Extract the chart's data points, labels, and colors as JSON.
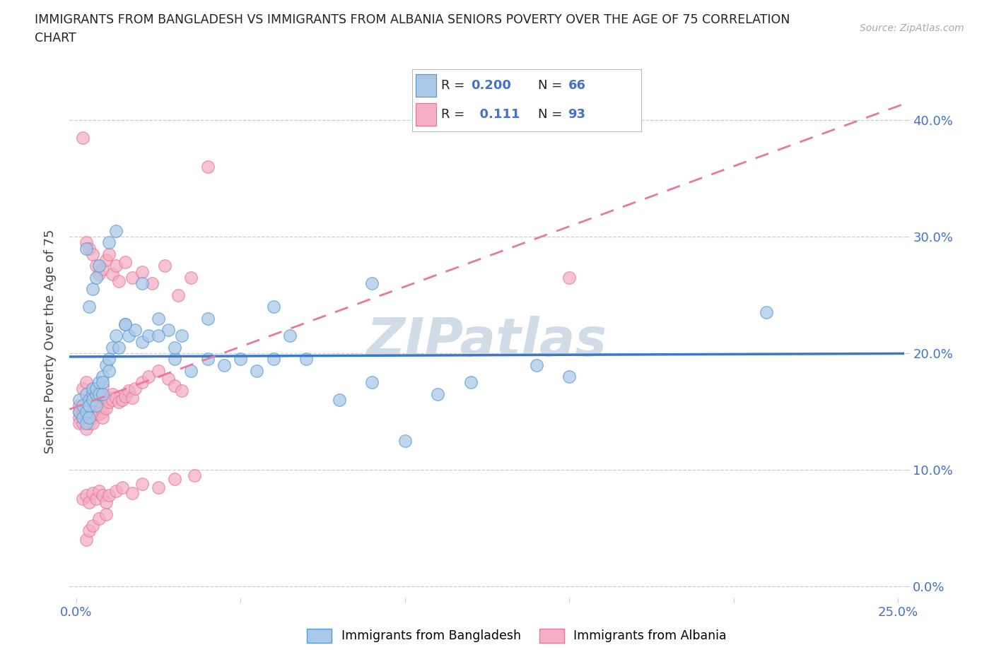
{
  "title_line1": "IMMIGRANTS FROM BANGLADESH VS IMMIGRANTS FROM ALBANIA SENIORS POVERTY OVER THE AGE OF 75 CORRELATION",
  "title_line2": "CHART",
  "source": "Source: ZipAtlas.com",
  "ylabel": "Seniors Poverty Over the Age of 75",
  "xlim": [
    -0.002,
    0.252
  ],
  "ylim": [
    -0.01,
    0.43
  ],
  "ytick_positions": [
    0.0,
    0.1,
    0.2,
    0.3,
    0.4
  ],
  "ytick_labels": [
    "0.0%",
    "10.0%",
    "20.0%",
    "30.0%",
    "40.0%"
  ],
  "xtick_positions": [
    0.0,
    0.05,
    0.1,
    0.15,
    0.2,
    0.25
  ],
  "xtick_labels": [
    "0.0%",
    "",
    "",
    "",
    "",
    "25.0%"
  ],
  "legend_label_bangladesh": "Immigrants from Bangladesh",
  "legend_label_albania": "Immigrants from Albania",
  "R_bangladesh": "0.200",
  "N_bangladesh": "66",
  "R_albania": "0.111",
  "N_albania": "93",
  "color_bangladesh_face": "#aac9e8",
  "color_albania_face": "#f4afc5",
  "color_bangladesh_edge": "#5b9bd5",
  "color_albania_edge": "#e8799a",
  "line_color_bangladesh": "#3a78c9",
  "line_color_albania": "#e8799a",
  "r_n_color": "#4472c4",
  "tick_color": "#4472c4",
  "watermark_text": "ZIPatlas",
  "watermark_color": "#d0dce8",
  "grid_color": "#cccccc",
  "title_color": "#222222",
  "source_color": "#aaaaaa",
  "bd_x": [
    0.001,
    0.001,
    0.002,
    0.002,
    0.003,
    0.003,
    0.003,
    0.004,
    0.004,
    0.004,
    0.005,
    0.005,
    0.005,
    0.006,
    0.006,
    0.006,
    0.007,
    0.007,
    0.008,
    0.008,
    0.008,
    0.009,
    0.01,
    0.01,
    0.011,
    0.012,
    0.013,
    0.015,
    0.016,
    0.018,
    0.02,
    0.022,
    0.025,
    0.028,
    0.03,
    0.032,
    0.035,
    0.04,
    0.045,
    0.05,
    0.055,
    0.06,
    0.065,
    0.07,
    0.08,
    0.09,
    0.1,
    0.11,
    0.12,
    0.14,
    0.003,
    0.004,
    0.005,
    0.006,
    0.007,
    0.01,
    0.012,
    0.015,
    0.02,
    0.025,
    0.03,
    0.04,
    0.06,
    0.09,
    0.15,
    0.21
  ],
  "bd_y": [
    0.16,
    0.15,
    0.155,
    0.145,
    0.165,
    0.15,
    0.14,
    0.16,
    0.155,
    0.145,
    0.165,
    0.17,
    0.16,
    0.165,
    0.155,
    0.17,
    0.175,
    0.165,
    0.18,
    0.165,
    0.175,
    0.19,
    0.195,
    0.185,
    0.205,
    0.215,
    0.205,
    0.225,
    0.215,
    0.22,
    0.21,
    0.215,
    0.23,
    0.22,
    0.195,
    0.215,
    0.185,
    0.195,
    0.19,
    0.195,
    0.185,
    0.195,
    0.215,
    0.195,
    0.16,
    0.175,
    0.125,
    0.165,
    0.175,
    0.19,
    0.29,
    0.24,
    0.255,
    0.265,
    0.275,
    0.295,
    0.305,
    0.225,
    0.26,
    0.215,
    0.205,
    0.23,
    0.24,
    0.26,
    0.18,
    0.235
  ],
  "al_x": [
    0.001,
    0.001,
    0.001,
    0.002,
    0.002,
    0.002,
    0.003,
    0.003,
    0.003,
    0.003,
    0.004,
    0.004,
    0.004,
    0.004,
    0.005,
    0.005,
    0.005,
    0.005,
    0.006,
    0.006,
    0.006,
    0.007,
    0.007,
    0.007,
    0.008,
    0.008,
    0.008,
    0.009,
    0.009,
    0.01,
    0.01,
    0.011,
    0.011,
    0.012,
    0.013,
    0.014,
    0.015,
    0.016,
    0.017,
    0.018,
    0.02,
    0.022,
    0.025,
    0.028,
    0.03,
    0.032,
    0.002,
    0.003,
    0.004,
    0.005,
    0.006,
    0.007,
    0.008,
    0.009,
    0.01,
    0.011,
    0.012,
    0.013,
    0.015,
    0.017,
    0.02,
    0.023,
    0.027,
    0.031,
    0.035,
    0.04,
    0.002,
    0.003,
    0.004,
    0.005,
    0.006,
    0.007,
    0.008,
    0.009,
    0.01,
    0.012,
    0.014,
    0.017,
    0.02,
    0.025,
    0.03,
    0.036,
    0.003,
    0.004,
    0.005,
    0.007,
    0.009,
    0.001,
    0.002,
    0.15,
    0.003,
    0.005,
    0.008
  ],
  "al_y": [
    0.15,
    0.145,
    0.14,
    0.15,
    0.145,
    0.14,
    0.155,
    0.15,
    0.145,
    0.135,
    0.16,
    0.155,
    0.145,
    0.14,
    0.155,
    0.15,
    0.145,
    0.14,
    0.16,
    0.155,
    0.148,
    0.158,
    0.155,
    0.148,
    0.155,
    0.15,
    0.145,
    0.16,
    0.153,
    0.162,
    0.158,
    0.165,
    0.16,
    0.162,
    0.158,
    0.16,
    0.163,
    0.168,
    0.162,
    0.17,
    0.175,
    0.18,
    0.185,
    0.178,
    0.172,
    0.168,
    0.385,
    0.295,
    0.29,
    0.285,
    0.275,
    0.268,
    0.272,
    0.28,
    0.285,
    0.268,
    0.275,
    0.262,
    0.278,
    0.265,
    0.27,
    0.26,
    0.275,
    0.25,
    0.265,
    0.36,
    0.075,
    0.078,
    0.072,
    0.08,
    0.075,
    0.082,
    0.078,
    0.072,
    0.078,
    0.082,
    0.085,
    0.08,
    0.088,
    0.085,
    0.092,
    0.095,
    0.04,
    0.048,
    0.052,
    0.058,
    0.062,
    0.155,
    0.17,
    0.265,
    0.175,
    0.168,
    0.172
  ]
}
